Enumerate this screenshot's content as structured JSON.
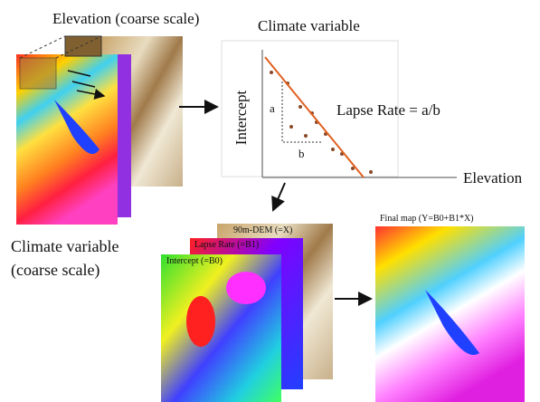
{
  "elevation_map": {
    "title": "Elevation (coarse scale)"
  },
  "climate_map": {
    "title_lines": [
      "Climate variable",
      "(coarse scale)"
    ]
  },
  "regression_plot": {
    "title": "Climate variable",
    "y_axis_label": "Intercept",
    "x_axis_label": "Elevation",
    "equation": "Lapse Rate = a/b",
    "rise_label": "a",
    "run_label": "b"
  },
  "layers": [
    {
      "label": "90m-DEM (=X)"
    },
    {
      "label": "Lapse Rate (=B1)"
    },
    {
      "label": "Intercept (=B0)"
    }
  ],
  "final_map": {
    "title": "Final map (Y=B0+B1*X)"
  }
}
